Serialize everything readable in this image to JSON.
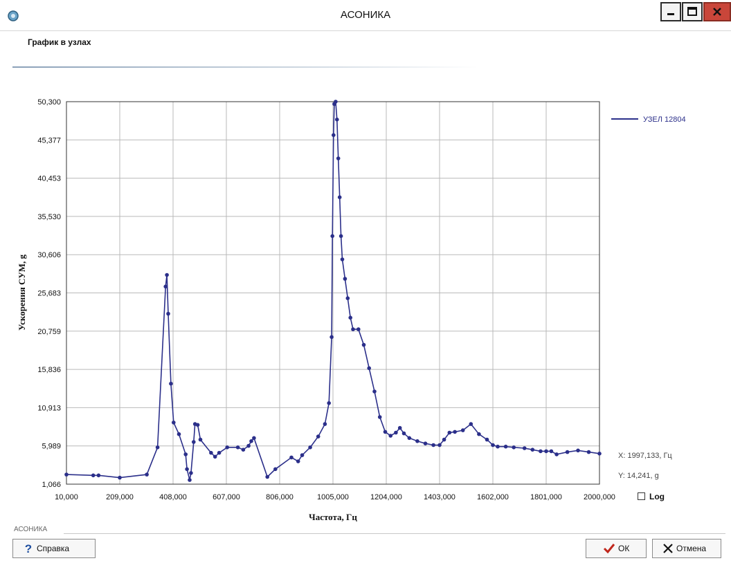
{
  "window": {
    "title": "АСОНИКА",
    "subtitle": "График в узлах",
    "icons": {
      "app": "asonika-app-icon",
      "minimize": "minimize-icon",
      "maximize": "maximize-icon",
      "close": "close-icon"
    }
  },
  "chart_data": {
    "type": "line",
    "xlabel": "Частота, Гц",
    "ylabel": "Ускорения СУМ, g",
    "xlim": [
      10,
      2000
    ],
    "ylim": [
      1.066,
      50.3
    ],
    "x_ticks": [
      "10,000",
      "209,000",
      "408,000",
      "607,000",
      "806,000",
      "1005,000",
      "1204,000",
      "1403,000",
      "1602,000",
      "1801,000",
      "2000,000"
    ],
    "y_ticks": [
      "1,066",
      "5,989",
      "10,913",
      "15,836",
      "20,759",
      "25,683",
      "30,606",
      "35,530",
      "40,453",
      "45,377",
      "50,300"
    ],
    "grid": true,
    "legend_position": "top-right",
    "series": [
      {
        "name": "УЗЕЛ 12804",
        "color": "#2b2f8a",
        "x": [
          10,
          110,
          130,
          209,
          310,
          350,
          380,
          385,
          390,
          400,
          410,
          430,
          455,
          460,
          470,
          475,
          485,
          490,
          500,
          510,
          550,
          565,
          580,
          610,
          650,
          670,
          690,
          700,
          710,
          760,
          790,
          850,
          875,
          890,
          920,
          950,
          975,
          990,
          1000,
          1003,
          1007,
          1010,
          1015,
          1020,
          1025,
          1030,
          1035,
          1040,
          1050,
          1060,
          1070,
          1080,
          1100,
          1120,
          1140,
          1160,
          1180,
          1200,
          1220,
          1240,
          1255,
          1270,
          1290,
          1320,
          1350,
          1380,
          1403,
          1420,
          1440,
          1460,
          1490,
          1520,
          1550,
          1580,
          1602,
          1620,
          1650,
          1680,
          1720,
          1750,
          1780,
          1801,
          1820,
          1840,
          1880,
          1920,
          1960,
          2000
        ],
        "values": [
          2.3,
          2.2,
          2.2,
          1.9,
          2.3,
          5.8,
          26.5,
          28.0,
          23.0,
          14.0,
          9.0,
          7.5,
          4.9,
          3.0,
          1.6,
          2.5,
          6.5,
          8.8,
          8.7,
          6.8,
          5.1,
          4.6,
          5.1,
          5.8,
          5.8,
          5.5,
          6.0,
          6.6,
          7.0,
          2.0,
          3.0,
          4.5,
          4.0,
          4.8,
          5.8,
          7.2,
          8.8,
          11.5,
          20.0,
          33.0,
          46.0,
          50.0,
          50.3,
          48.0,
          43.0,
          38.0,
          33.0,
          30.0,
          27.5,
          25.0,
          22.5,
          21.0,
          21.0,
          19.0,
          16.0,
          13.0,
          9.7,
          7.8,
          7.3,
          7.7,
          8.3,
          7.6,
          7.0,
          6.6,
          6.3,
          6.1,
          6.1,
          6.8,
          7.7,
          7.8,
          8.0,
          8.8,
          7.5,
          6.8,
          6.1,
          5.9,
          5.9,
          5.8,
          5.7,
          5.5,
          5.3,
          5.3,
          5.3,
          4.9,
          5.2,
          5.4,
          5.2,
          5.0
        ]
      }
    ]
  },
  "readout": {
    "x": "X: 1997,133, Гц",
    "y": "Y: 14,241, g"
  },
  "log_toggle": {
    "label": "Log",
    "checked": false
  },
  "footer": {
    "group_label": "АСОНИКА",
    "help_label": "Справка",
    "ok_label": "ОК",
    "cancel_label": "Отмена",
    "icons": {
      "help": "help-question-icon",
      "ok": "checkmark-icon",
      "cancel": "cross-icon"
    }
  }
}
